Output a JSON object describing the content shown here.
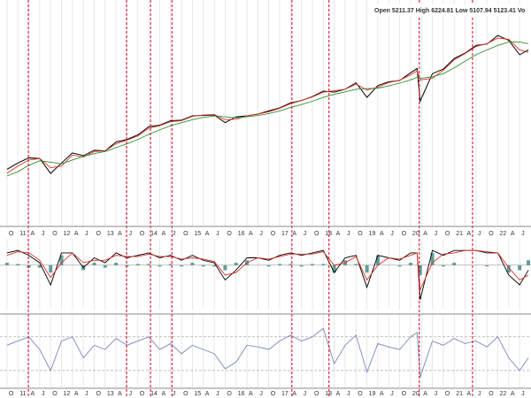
{
  "chart_data": [
    {
      "type": "line",
      "header": "Open 5211.37  High 6224.81  Low 5107.94  5123.41  Vo",
      "log_scale": true,
      "grid": true,
      "xlim": [
        10.59,
        22.76
      ],
      "ylim": [
        650,
        6780
      ],
      "x": [
        10.75,
        11,
        11.25,
        11.5,
        11.75,
        12,
        12.25,
        12.5,
        12.75,
        13,
        13.25,
        13.5,
        13.75,
        14,
        14.25,
        14.5,
        14.75,
        15,
        15.25,
        15.5,
        15.75,
        16,
        16.25,
        16.5,
        16.75,
        17,
        17.25,
        17.5,
        17.75,
        18,
        18.25,
        18.5,
        18.75,
        19,
        19.25,
        19.5,
        19.75,
        20,
        20.15,
        20.22,
        20.5,
        20.75,
        21,
        21.25,
        21.5,
        21.75,
        22,
        22.25,
        22.5,
        22.7
      ],
      "xticks": [
        {
          "value": 10.75,
          "label": "O"
        },
        11,
        {
          "value": 11.25,
          "label": "A"
        },
        {
          "value": 11.5,
          "label": "J"
        },
        {
          "value": 11.75,
          "label": "O"
        },
        12,
        {
          "value": 12.25,
          "label": "A"
        },
        {
          "value": 12.5,
          "label": "J"
        },
        {
          "value": 12.75,
          "label": "O"
        },
        13,
        {
          "value": 13.25,
          "label": "A"
        },
        {
          "value": 13.5,
          "label": "J"
        },
        {
          "value": 13.75,
          "label": "O"
        },
        14,
        {
          "value": 14.25,
          "label": "A"
        },
        {
          "value": 14.5,
          "label": "J"
        },
        {
          "value": 14.75,
          "label": "O"
        },
        15,
        {
          "value": 15.25,
          "label": "A"
        },
        {
          "value": 15.5,
          "label": "J"
        },
        {
          "value": 15.75,
          "label": "O"
        },
        16,
        {
          "value": 16.25,
          "label": "A"
        },
        {
          "value": 16.5,
          "label": "J"
        },
        {
          "value": 16.75,
          "label": "O"
        },
        17,
        {
          "value": 17.25,
          "label": "A"
        },
        {
          "value": 17.5,
          "label": "J"
        },
        {
          "value": 17.75,
          "label": "O"
        },
        18,
        {
          "value": 18.25,
          "label": "A"
        },
        {
          "value": 18.5,
          "label": "J"
        },
        {
          "value": 18.75,
          "label": "O"
        },
        19,
        {
          "value": 19.25,
          "label": "A"
        },
        {
          "value": 19.5,
          "label": "J"
        },
        {
          "value": 19.75,
          "label": "O"
        },
        20,
        {
          "value": 20.25,
          "label": "A"
        },
        {
          "value": 20.5,
          "label": "J"
        },
        {
          "value": 20.75,
          "label": "O"
        },
        21,
        {
          "value": 21.25,
          "label": "A"
        },
        {
          "value": 21.5,
          "label": "J"
        },
        {
          "value": 21.75,
          "label": "O"
        },
        22,
        {
          "value": 22.25,
          "label": "A"
        },
        {
          "value": 22.5,
          "label": "J"
        }
      ],
      "event_lines": [
        11.24,
        13.49,
        14.04,
        14.53,
        17.28,
        18.13,
        20.2,
        21.42
      ],
      "event_color": "#d0021b",
      "series": [
        {
          "color": "#000000",
          "values": [
            1180,
            1260,
            1330,
            1320,
            1130,
            1260,
            1400,
            1360,
            1440,
            1430,
            1570,
            1610,
            1690,
            1840,
            1870,
            1960,
            1970,
            2060,
            2070,
            2080,
            1920,
            2040,
            2060,
            2100,
            2170,
            2240,
            2360,
            2420,
            2520,
            2670,
            2640,
            2720,
            2910,
            2500,
            2830,
            2940,
            2980,
            3230,
            3380,
            2400,
            3200,
            3360,
            3750,
            3970,
            4300,
            4360,
            4770,
            4530,
            3900,
            4100
          ]
        },
        {
          "color": "#e0322a",
          "values": [
            1130,
            1220,
            1300,
            1320,
            1200,
            1220,
            1370,
            1340,
            1420,
            1430,
            1540,
            1600,
            1670,
            1810,
            1860,
            1940,
            1960,
            2050,
            2080,
            2090,
            1980,
            1990,
            2060,
            2100,
            2150,
            2230,
            2340,
            2420,
            2510,
            2640,
            2680,
            2720,
            2870,
            2700,
            2780,
            2920,
            2990,
            3160,
            3300,
            3000,
            3050,
            3320,
            3700,
            3950,
            4250,
            4380,
            4640,
            4580,
            4100,
            4000
          ]
        },
        {
          "color": "#2f8f2f",
          "values": [
            1100,
            1150,
            1230,
            1290,
            1270,
            1250,
            1300,
            1350,
            1390,
            1420,
            1480,
            1540,
            1610,
            1700,
            1780,
            1860,
            1920,
            1980,
            2030,
            2060,
            2040,
            2020,
            2040,
            2070,
            2110,
            2170,
            2250,
            2320,
            2400,
            2500,
            2580,
            2650,
            2720,
            2740,
            2750,
            2820,
            2900,
            3000,
            3080,
            3050,
            3100,
            3200,
            3400,
            3650,
            3900,
            4100,
            4300,
            4450,
            4450,
            4380
          ]
        }
      ]
    },
    {
      "type": "line",
      "ylim": [
        -1.8,
        1.0
      ],
      "baseline": 0,
      "series": [
        {
          "type": "bar",
          "color": "#5f9e98",
          "values": [
            0.1,
            0.05,
            -0.1,
            -0.1,
            -0.3,
            0.4,
            0,
            -0.2,
            0.1,
            -0.1,
            0.1,
            -0.05,
            0.05,
            0.05,
            -0.05,
            0.05,
            -0.05,
            0.1,
            -0.05,
            -0.05,
            -0.2,
            0.1,
            0.2,
            0,
            -0.05,
            0.05,
            0.05,
            -0.05,
            0.05,
            0.05,
            -0.3,
            0.2,
            0.05,
            -0.3,
            0.4,
            0,
            -0.05,
            0.1,
            0,
            -0.4,
            0.5,
            -0.05,
            0.1,
            0,
            0,
            -0.05,
            0,
            -0.3,
            -0.2,
            0.2
          ]
        },
        {
          "color": "#000000",
          "values": [
            0.5,
            0.6,
            0.4,
            0.1,
            -0.8,
            0.5,
            0.5,
            -0.1,
            0.3,
            0.1,
            0.5,
            0.3,
            0.4,
            0.5,
            0.3,
            0.4,
            0.2,
            0.4,
            0.2,
            0.1,
            -0.6,
            -0.2,
            0.3,
            0.3,
            0.2,
            0.4,
            0.5,
            0.4,
            0.5,
            0.6,
            -0.3,
            0.3,
            0.4,
            -0.9,
            0.4,
            0.3,
            0.2,
            0.5,
            0.5,
            -1.4,
            0.6,
            0.4,
            0.6,
            0.6,
            0.6,
            0.5,
            0.5,
            -0.4,
            -0.8,
            -0.2
          ]
        },
        {
          "color": "#e0322a",
          "values": [
            0.4,
            0.55,
            0.5,
            0.2,
            -0.5,
            0.1,
            0.5,
            0.1,
            0.2,
            0.2,
            0.4,
            0.35,
            0.35,
            0.45,
            0.35,
            0.35,
            0.25,
            0.3,
            0.25,
            0.15,
            -0.4,
            -0.3,
            0.1,
            0.3,
            0.25,
            0.35,
            0.45,
            0.45,
            0.45,
            0.55,
            0,
            0.1,
            0.35,
            -0.6,
            0,
            0.3,
            0.25,
            0.4,
            0.5,
            -1,
            0.1,
            0.45,
            0.5,
            0.6,
            0.6,
            0.55,
            0.5,
            -0.1,
            -0.6,
            -0.4
          ]
        }
      ]
    },
    {
      "type": "line",
      "ylim": [
        10,
        95
      ],
      "guides": [
        70,
        30
      ],
      "series": [
        {
          "color": "#7b86b8",
          "values": [
            60,
            65,
            70,
            55,
            30,
            65,
            70,
            45,
            60,
            55,
            68,
            60,
            65,
            70,
            55,
            62,
            50,
            60,
            55,
            50,
            32,
            40,
            60,
            58,
            55,
            65,
            72,
            65,
            70,
            80,
            38,
            60,
            72,
            28,
            62,
            58,
            55,
            70,
            75,
            22,
            65,
            60,
            68,
            62,
            65,
            58,
            70,
            45,
            30,
            45
          ]
        }
      ]
    }
  ]
}
